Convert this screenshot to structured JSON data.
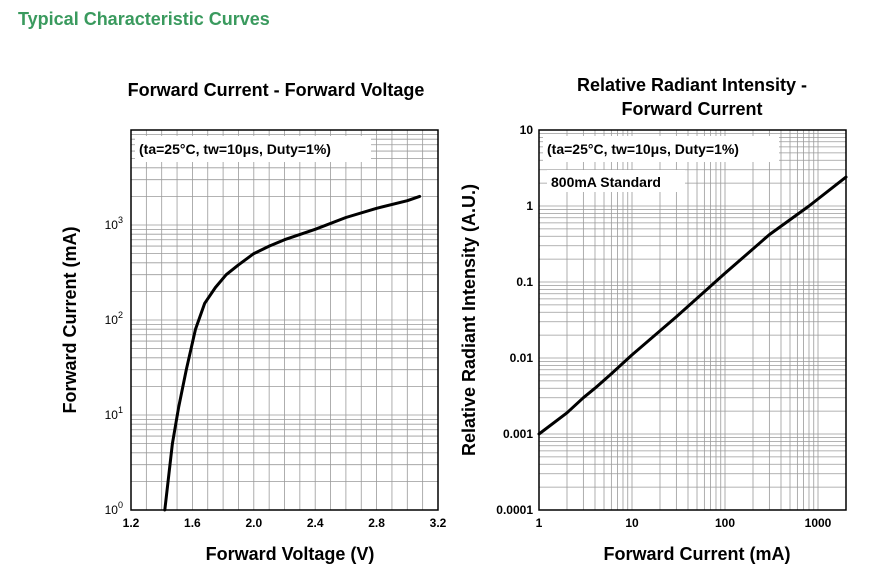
{
  "page": {
    "heading": "Typical Characteristic Curves",
    "heading_color": "#3a9a5e"
  },
  "chart_data": [
    {
      "type": "line",
      "title": "Forward Current - Forward Voltage",
      "annotation": "(ta=25°C, tw=10μs, Duty=1%)",
      "xlabel": "Forward Voltage (V)",
      "ylabel": "Forward Current (mA)",
      "x_scale": "linear",
      "y_scale": "log",
      "xlim": [
        1.2,
        3.2
      ],
      "ylim": [
        1,
        10000
      ],
      "grid": true,
      "x_ticks": [
        "1.2",
        "1.6",
        "2.0",
        "2.4",
        "2.8",
        "3.2"
      ],
      "y_ticks": [
        {
          "base": "10",
          "exp": "0"
        },
        {
          "base": "10",
          "exp": "1"
        },
        {
          "base": "10",
          "exp": "2"
        },
        {
          "base": "10",
          "exp": "3"
        }
      ],
      "x": [
        1.42,
        1.47,
        1.51,
        1.56,
        1.62,
        1.68,
        1.75,
        1.82,
        1.9,
        2.0,
        2.1,
        2.2,
        2.4,
        2.6,
        2.8,
        3.0,
        3.08
      ],
      "y": [
        1,
        5,
        12,
        30,
        80,
        150,
        220,
        300,
        380,
        500,
        600,
        700,
        900,
        1200,
        1500,
        1800,
        2000
      ]
    },
    {
      "type": "line",
      "title": "Relative Radiant Intensity - Forward Current",
      "annotation": "(ta=25°C, tw=10μs, Duty=1%)",
      "annotation2": "800mA Standard",
      "xlabel": "Forward Current (mA)",
      "ylabel": "Relative Radiant Intensity (A.U.)",
      "x_scale": "log",
      "y_scale": "log",
      "xlim": [
        1,
        2000
      ],
      "ylim": [
        0.0001,
        10
      ],
      "grid": true,
      "x_ticks": [
        "1",
        "10",
        "100",
        "1000"
      ],
      "y_ticks": [
        "0.0001",
        "0.001",
        "0.01",
        "0.1",
        "1",
        "10"
      ],
      "x": [
        1,
        2,
        3,
        4,
        6,
        10,
        30,
        100,
        300,
        800,
        2000
      ],
      "y": [
        0.001,
        0.0019,
        0.003,
        0.004,
        0.0062,
        0.011,
        0.035,
        0.13,
        0.42,
        1.0,
        2.4
      ]
    }
  ]
}
